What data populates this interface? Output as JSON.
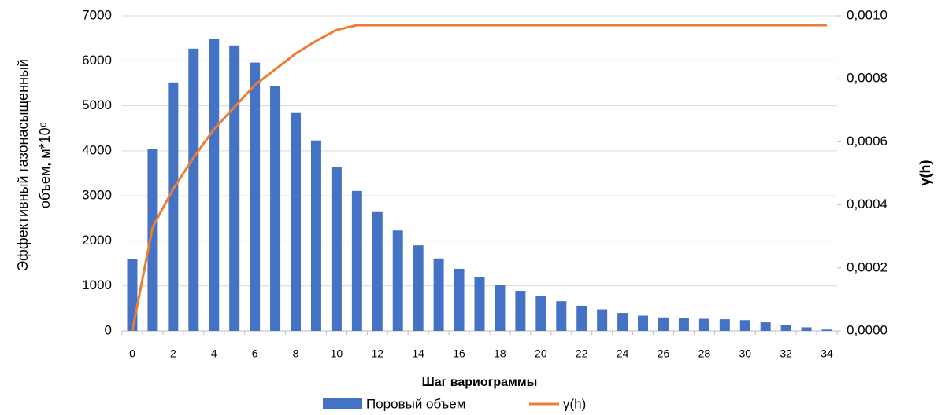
{
  "chart_data": {
    "type": "bar",
    "y_label": [
      "Эффективный газонасыщенный",
      "объем, м*10⁶"
    ],
    "y2_label": "γ(h)",
    "x_label": "Шаг вариограммы",
    "categories": [
      "0",
      null,
      "2",
      null,
      "4",
      null,
      "6",
      null,
      "8",
      null,
      "10",
      null,
      "12",
      null,
      "14",
      null,
      "16",
      null,
      "18",
      null,
      "20",
      null,
      "22",
      null,
      "24",
      null,
      "26",
      null,
      "28",
      null,
      "30",
      null,
      "32",
      null,
      "34"
    ],
    "series": [
      {
        "name": "Поровый объем",
        "type": "bar",
        "color": "#4472c4",
        "values": [
          1600,
          4040,
          5520,
          6270,
          6490,
          6340,
          5960,
          5430,
          4840,
          4230,
          3640,
          3110,
          2640,
          2230,
          1900,
          1610,
          1380,
          1190,
          1030,
          890,
          770,
          660,
          560,
          480,
          400,
          340,
          300,
          280,
          270,
          260,
          240,
          190,
          130,
          80,
          30
        ]
      },
      {
        "name": "γ(h)",
        "type": "line",
        "axis": "y2",
        "color": "#ed7d31",
        "values": [
          0,
          0.00033,
          0.00045,
          0.00055,
          0.00064,
          0.00071,
          0.00078,
          0.00083,
          0.00088,
          0.00092,
          0.000955,
          0.00097,
          0.00097,
          0.00097,
          0.00097,
          0.00097,
          0.00097,
          0.00097,
          0.00097,
          0.00097,
          0.00097,
          0.00097,
          0.00097,
          0.00097,
          0.00097,
          0.00097,
          0.00097,
          0.00097,
          0.00097,
          0.00097,
          0.00097,
          0.00097,
          0.00097,
          0.00097,
          0.00097
        ]
      }
    ],
    "ylim": [
      0,
      7000
    ],
    "yticks": [
      0,
      1000,
      2000,
      3000,
      4000,
      5000,
      6000,
      7000
    ],
    "y2lim": [
      0,
      0.001
    ],
    "y2ticks": [
      {
        "value": 0,
        "label": "0,0000"
      },
      {
        "value": 0.0002,
        "label": "0,0002"
      },
      {
        "value": 0.0004,
        "label": "0,0004"
      },
      {
        "value": 0.0006,
        "label": "0,0006"
      },
      {
        "value": 0.0008,
        "label": "0,0008"
      },
      {
        "value": 0.001,
        "label": "0,0010"
      }
    ],
    "grid": true,
    "legend": "bottom"
  }
}
